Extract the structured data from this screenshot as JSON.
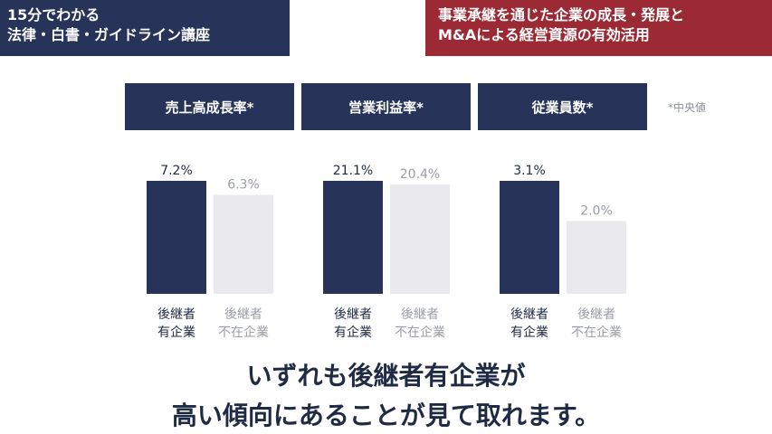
{
  "badges": {
    "left": {
      "line1": "15分でわかる",
      "line2": "法律・白書・ガイドライン講座"
    },
    "right": {
      "line1": "事業承継を通じた企業の成長・発展と",
      "line2": "M&Aによる経営資源の有効活用"
    }
  },
  "note": "*中央値",
  "colors": {
    "navy": "#273359",
    "light": "#e9e9ee",
    "red": "#9b2a34",
    "muted": "#9a9ea8"
  },
  "categories": [
    {
      "line1": "後継者",
      "line2": "有企業"
    },
    {
      "line1": "後継者",
      "line2": "不在企業"
    }
  ],
  "chart_data": [
    {
      "type": "bar",
      "title": "売上高成長率*",
      "categories": [
        "後継者有企業",
        "後継者不在企業"
      ],
      "values": [
        7.2,
        6.3
      ],
      "value_labels": [
        "7.2%",
        "6.3%"
      ]
    },
    {
      "type": "bar",
      "title": "営業利益率*",
      "categories": [
        "後継者有企業",
        "後継者不在企業"
      ],
      "values": [
        21.1,
        20.4
      ],
      "value_labels": [
        "21.1%",
        "20.4%"
      ]
    },
    {
      "type": "bar",
      "title": "従業員数*",
      "categories": [
        "後継者有企業",
        "後継者不在企業"
      ],
      "values": [
        3.1,
        2.0
      ],
      "value_labels": [
        "3.1%",
        "2.0%"
      ]
    }
  ],
  "conclusion": {
    "line1": "いずれも後継者有企業が",
    "line2": "高い傾向にあることが見て取れます。"
  }
}
